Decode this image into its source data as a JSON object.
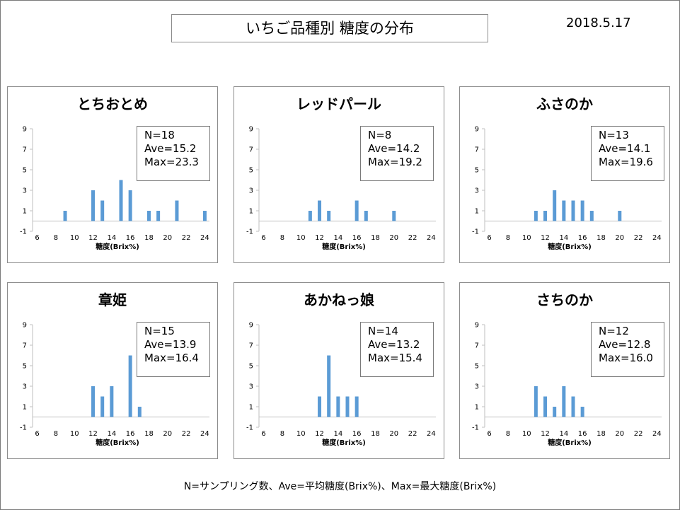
{
  "title": "いちご品種別  糖度の分布",
  "date": "2018.5.17",
  "footnote": "N=サンプリング数、Ave=平均糖度(Brix%)、Max=最大糖度(Brix%)",
  "colors": {
    "bar": "#5b9bd5",
    "axis": "#bfbfbf"
  },
  "chart_data": [
    {
      "type": "bar",
      "title": "とちおとめ",
      "xlabel": "糖度(Brix%)",
      "x": [
        9,
        12,
        13,
        15,
        16,
        18,
        19,
        21,
        24
      ],
      "values": [
        1,
        3,
        2,
        4,
        3,
        1,
        1,
        2,
        1
      ],
      "xlim": [
        6,
        24
      ],
      "ylim": [
        -1,
        9
      ],
      "xticks": [
        6,
        8,
        10,
        12,
        14,
        16,
        18,
        20,
        22,
        24
      ],
      "yticks": [
        9,
        7,
        5,
        3,
        1,
        -1
      ],
      "stats": {
        "n": "N=18",
        "ave": "Ave=15.2",
        "max": "Max=23.3"
      }
    },
    {
      "type": "bar",
      "title": "レッドパール",
      "xlabel": "糖度(Brix%)",
      "x": [
        11,
        12,
        13,
        16,
        17,
        20
      ],
      "values": [
        1,
        2,
        1,
        2,
        1,
        1
      ],
      "xlim": [
        6,
        24
      ],
      "ylim": [
        -1,
        9
      ],
      "xticks": [
        6,
        8,
        10,
        12,
        14,
        16,
        18,
        20,
        22,
        24
      ],
      "yticks": [
        9,
        7,
        5,
        3,
        1,
        -1
      ],
      "stats": {
        "n": "N=8",
        "ave": "Ave=14.2",
        "max": "Max=19.2"
      }
    },
    {
      "type": "bar",
      "title": "ふさのか",
      "xlabel": "糖度(Brix%)",
      "x": [
        11,
        12,
        13,
        14,
        15,
        16,
        17,
        20
      ],
      "values": [
        1,
        1,
        3,
        2,
        2,
        2,
        1,
        1
      ],
      "xlim": [
        6,
        24
      ],
      "ylim": [
        -1,
        9
      ],
      "xticks": [
        6,
        8,
        10,
        12,
        14,
        16,
        18,
        20,
        22,
        24
      ],
      "yticks": [
        9,
        7,
        5,
        3,
        1,
        -1
      ],
      "stats": {
        "n": "N=13",
        "ave": "Ave=14.1",
        "max": "Max=19.6"
      }
    },
    {
      "type": "bar",
      "title": "章姫",
      "xlabel": "糖度(Brix%)",
      "x": [
        12,
        13,
        14,
        16,
        17
      ],
      "values": [
        3,
        2,
        3,
        6,
        1
      ],
      "xlim": [
        6,
        24
      ],
      "ylim": [
        -1,
        9
      ],
      "xticks": [
        6,
        8,
        10,
        12,
        14,
        16,
        18,
        20,
        22,
        24
      ],
      "yticks": [
        9,
        7,
        5,
        3,
        1,
        -1
      ],
      "stats": {
        "n": "N=15",
        "ave": "Ave=13.9",
        "max": "Max=16.4"
      }
    },
    {
      "type": "bar",
      "title": "あかねっ娘",
      "xlabel": "糖度(Brix%)",
      "x": [
        12,
        13,
        14,
        15,
        16
      ],
      "values": [
        2,
        6,
        2,
        2,
        2
      ],
      "xlim": [
        6,
        24
      ],
      "ylim": [
        -1,
        9
      ],
      "xticks": [
        6,
        8,
        10,
        12,
        14,
        16,
        18,
        20,
        22,
        24
      ],
      "yticks": [
        9,
        7,
        5,
        3,
        1,
        -1
      ],
      "stats": {
        "n": "N=14",
        "ave": "Ave=13.2",
        "max": "Max=15.4"
      }
    },
    {
      "type": "bar",
      "title": "さちのか",
      "xlabel": "糖度(Brix%)",
      "x": [
        11,
        12,
        13,
        14,
        15,
        16
      ],
      "values": [
        3,
        2,
        1,
        3,
        2,
        1
      ],
      "xlim": [
        6,
        24
      ],
      "ylim": [
        -1,
        9
      ],
      "xticks": [
        6,
        8,
        10,
        12,
        14,
        16,
        18,
        20,
        22,
        24
      ],
      "yticks": [
        9,
        7,
        5,
        3,
        1,
        -1
      ],
      "stats": {
        "n": "N=12",
        "ave": "Ave=12.8",
        "max": "Max=16.0"
      }
    }
  ]
}
